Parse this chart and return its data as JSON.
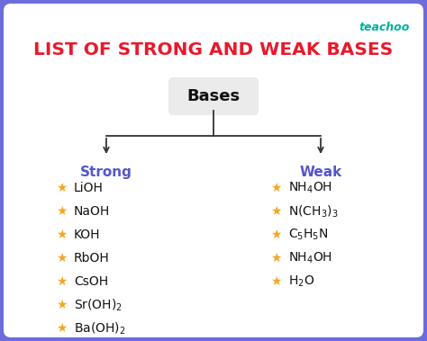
{
  "title": "LIST OF STRONG AND WEAK BASES",
  "title_color": "#e8192c",
  "background_color": "#6c6cdc",
  "inner_bg_color": "#ffffff",
  "brand": "teachoo",
  "brand_color": "#00b09b",
  "bases_label": "Bases",
  "bases_box_color": "#ebebeb",
  "strong_label": "Strong",
  "weak_label": "Weak",
  "category_color": "#5555cc",
  "star_color": "#f5a623",
  "line_color": "#333333",
  "strong_items": [
    "LiOH",
    "NaOH",
    "KOH",
    "RbOH",
    "CsOH",
    "Sr(OH)$_2$",
    "Ba(OH)$_2$"
  ],
  "weak_items": [
    "NH$_4$OH",
    "N(CH$_3$)$_3$",
    "C$_5$H$_5$N",
    "NH$_4$OH",
    "H$_2$O"
  ]
}
